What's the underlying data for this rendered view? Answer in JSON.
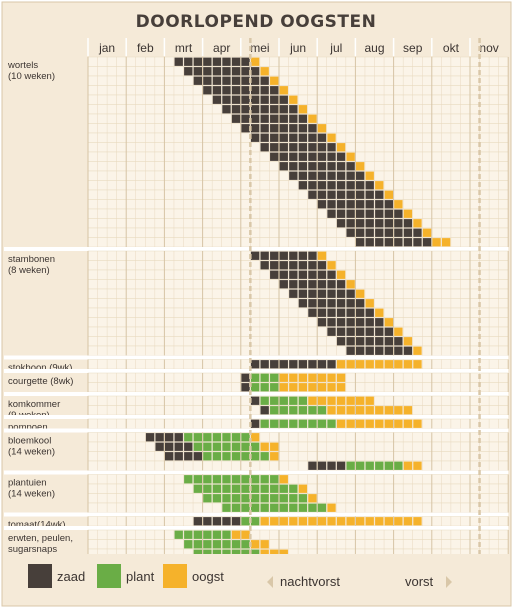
{
  "chart_data": {
    "type": "gantt",
    "title": "DOORLOPEND OOGSTEN",
    "months": [
      "jan",
      "feb",
      "mrt",
      "apr",
      "mei",
      "jun",
      "jul",
      "aug",
      "sep",
      "okt",
      "nov"
    ],
    "weeks_per_month": 4,
    "grid": true,
    "frost_markers": {
      "nachtvorst_end_week": 17,
      "vorst_start_week": 41
    },
    "colors": {
      "background": "#f5ead8",
      "grid_line": "#ffffff",
      "grid_cell_border": "#e8d9bf",
      "zaad": "#473f3a",
      "plant": "#6aad46",
      "oogst": "#f5b22b",
      "title_text": "#473f3a",
      "label_text": "#3b3431",
      "legend_text": "#3b3431",
      "frost_line": "#d9c7a8"
    },
    "legend": [
      {
        "key": "zaad",
        "label": "zaad"
      },
      {
        "key": "plant",
        "label": "plant"
      },
      {
        "key": "oogst",
        "label": "oogst"
      }
    ],
    "frost_labels": {
      "nachtvorst": "nachtvorst",
      "vorst": "vorst"
    },
    "crops": [
      {
        "label": [
          "wortels",
          "(10 weken)"
        ],
        "rows": [
          [
            [
              9,
              17,
              "zaad"
            ],
            [
              17,
              18,
              "oogst"
            ]
          ],
          [
            [
              10,
              18,
              "zaad"
            ],
            [
              18,
              19,
              "oogst"
            ]
          ],
          [
            [
              11,
              19,
              "zaad"
            ],
            [
              19,
              20,
              "oogst"
            ]
          ],
          [
            [
              12,
              20,
              "zaad"
            ],
            [
              20,
              21,
              "oogst"
            ]
          ],
          [
            [
              13,
              21,
              "zaad"
            ],
            [
              21,
              22,
              "oogst"
            ]
          ],
          [
            [
              14,
              22,
              "zaad"
            ],
            [
              22,
              23,
              "oogst"
            ]
          ],
          [
            [
              15,
              23,
              "zaad"
            ],
            [
              23,
              24,
              "oogst"
            ]
          ],
          [
            [
              16,
              24,
              "zaad"
            ],
            [
              24,
              25,
              "oogst"
            ]
          ],
          [
            [
              17,
              25,
              "zaad"
            ],
            [
              25,
              26,
              "oogst"
            ]
          ],
          [
            [
              18,
              26,
              "zaad"
            ],
            [
              26,
              27,
              "oogst"
            ]
          ],
          [
            [
              19,
              27,
              "zaad"
            ],
            [
              27,
              28,
              "oogst"
            ]
          ],
          [
            [
              20,
              28,
              "zaad"
            ],
            [
              28,
              29,
              "oogst"
            ]
          ],
          [
            [
              21,
              29,
              "zaad"
            ],
            [
              29,
              30,
              "oogst"
            ]
          ],
          [
            [
              22,
              30,
              "zaad"
            ],
            [
              30,
              31,
              "oogst"
            ]
          ],
          [
            [
              23,
              31,
              "zaad"
            ],
            [
              31,
              32,
              "oogst"
            ]
          ],
          [
            [
              24,
              32,
              "zaad"
            ],
            [
              32,
              33,
              "oogst"
            ]
          ],
          [
            [
              25,
              33,
              "zaad"
            ],
            [
              33,
              34,
              "oogst"
            ]
          ],
          [
            [
              26,
              34,
              "zaad"
            ],
            [
              34,
              35,
              "oogst"
            ]
          ],
          [
            [
              27,
              35,
              "zaad"
            ],
            [
              35,
              36,
              "oogst"
            ]
          ],
          [
            [
              28,
              36,
              "zaad"
            ],
            [
              36,
              38,
              "oogst"
            ]
          ]
        ]
      },
      {
        "label": [
          "stambonen",
          "(8 weken)"
        ],
        "rows": [
          [
            [
              17,
              24,
              "zaad"
            ],
            [
              24,
              25,
              "oogst"
            ]
          ],
          [
            [
              18,
              25,
              "zaad"
            ],
            [
              25,
              26,
              "oogst"
            ]
          ],
          [
            [
              19,
              26,
              "zaad"
            ],
            [
              26,
              27,
              "oogst"
            ]
          ],
          [
            [
              20,
              27,
              "zaad"
            ],
            [
              27,
              28,
              "oogst"
            ]
          ],
          [
            [
              21,
              28,
              "zaad"
            ],
            [
              28,
              29,
              "oogst"
            ]
          ],
          [
            [
              22,
              29,
              "zaad"
            ],
            [
              29,
              30,
              "oogst"
            ]
          ],
          [
            [
              23,
              30,
              "zaad"
            ],
            [
              30,
              31,
              "oogst"
            ]
          ],
          [
            [
              24,
              31,
              "zaad"
            ],
            [
              31,
              32,
              "oogst"
            ]
          ],
          [
            [
              25,
              32,
              "zaad"
            ],
            [
              32,
              33,
              "oogst"
            ]
          ],
          [
            [
              26,
              33,
              "zaad"
            ],
            [
              33,
              34,
              "oogst"
            ]
          ],
          [
            [
              27,
              34,
              "zaad"
            ],
            [
              34,
              35,
              "oogst"
            ]
          ]
        ]
      },
      {
        "label": [
          "stokboon (9wk)"
        ],
        "rows": [
          [
            [
              17,
              26,
              "zaad"
            ],
            [
              26,
              35,
              "oogst"
            ]
          ]
        ]
      },
      {
        "label": [
          "courgette (8wk)"
        ],
        "rows": [
          [
            [
              16,
              17,
              "zaad"
            ],
            [
              17,
              20,
              "plant"
            ],
            [
              20,
              27,
              "oogst"
            ]
          ],
          [
            [
              16,
              17,
              "zaad"
            ],
            [
              17,
              20,
              "plant"
            ],
            [
              20,
              27,
              "oogst"
            ]
          ]
        ]
      },
      {
        "label": [
          "komkommer",
          "(9 weken)"
        ],
        "rows": [
          [
            [
              17,
              18,
              "zaad"
            ],
            [
              18,
              23,
              "plant"
            ],
            [
              23,
              30,
              "oogst"
            ]
          ],
          [
            [
              18,
              19,
              "zaad"
            ],
            [
              19,
              25,
              "plant"
            ],
            [
              25,
              34,
              "oogst"
            ]
          ]
        ]
      },
      {
        "label": [
          "pompoen",
          "(12 weken)"
        ],
        "rows": [
          [
            [
              17,
              18,
              "zaad"
            ],
            [
              18,
              26,
              "plant"
            ],
            [
              26,
              35,
              "oogst"
            ]
          ]
        ]
      },
      {
        "label": [
          "bloemkool",
          "(14 weken)"
        ],
        "rows": [
          [
            [
              6,
              10,
              "zaad"
            ],
            [
              10,
              17,
              "plant"
            ],
            [
              17,
              18,
              "oogst"
            ]
          ],
          [
            [
              7,
              11,
              "zaad"
            ],
            [
              11,
              18,
              "plant"
            ],
            [
              18,
              20,
              "oogst"
            ]
          ],
          [
            [
              8,
              12,
              "zaad"
            ],
            [
              12,
              19,
              "plant"
            ],
            [
              19,
              20,
              "oogst"
            ]
          ],
          [
            [
              23,
              27,
              "zaad"
            ],
            [
              27,
              33,
              "plant"
            ],
            [
              33,
              35,
              "oogst"
            ]
          ]
        ]
      },
      {
        "label": [
          "plantuien",
          "(14 weken)"
        ],
        "rows": [
          [
            [
              10,
              20,
              "plant"
            ],
            [
              20,
              21,
              "oogst"
            ]
          ],
          [
            [
              11,
              22,
              "plant"
            ],
            [
              22,
              23,
              "oogst"
            ]
          ],
          [
            [
              12,
              23,
              "plant"
            ],
            [
              23,
              24,
              "oogst"
            ]
          ],
          [
            [
              14,
              25,
              "plant"
            ],
            [
              25,
              26,
              "oogst"
            ]
          ]
        ]
      },
      {
        "label": [
          "tomaat(14wk)"
        ],
        "rows": [
          [
            [
              11,
              16,
              "zaad"
            ],
            [
              16,
              18,
              "plant"
            ],
            [
              18,
              35,
              "oogst"
            ]
          ]
        ]
      },
      {
        "label": [
          "erwten, peulen,",
          "sugarsnaps",
          "10 weken)"
        ],
        "rows": [
          [
            [
              9,
              15,
              "plant"
            ],
            [
              15,
              17,
              "oogst"
            ]
          ],
          [
            [
              10,
              17,
              "plant"
            ],
            [
              17,
              19,
              "oogst"
            ]
          ],
          [
            [
              11,
              18,
              "plant"
            ],
            [
              18,
              21,
              "oogst"
            ]
          ],
          [
            [
              12,
              20,
              "plant"
            ],
            [
              20,
              23,
              "oogst"
            ]
          ],
          [
            [
              14,
              22,
              "plant"
            ],
            [
              22,
              25,
              "oogst"
            ]
          ],
          [
            [
              18,
              26,
              "plant"
            ],
            [
              26,
              29,
              "oogst"
            ]
          ],
          [
            [
              27,
              35,
              "plant"
            ],
            [
              35,
              39,
              "oogst"
            ]
          ]
        ]
      }
    ]
  }
}
